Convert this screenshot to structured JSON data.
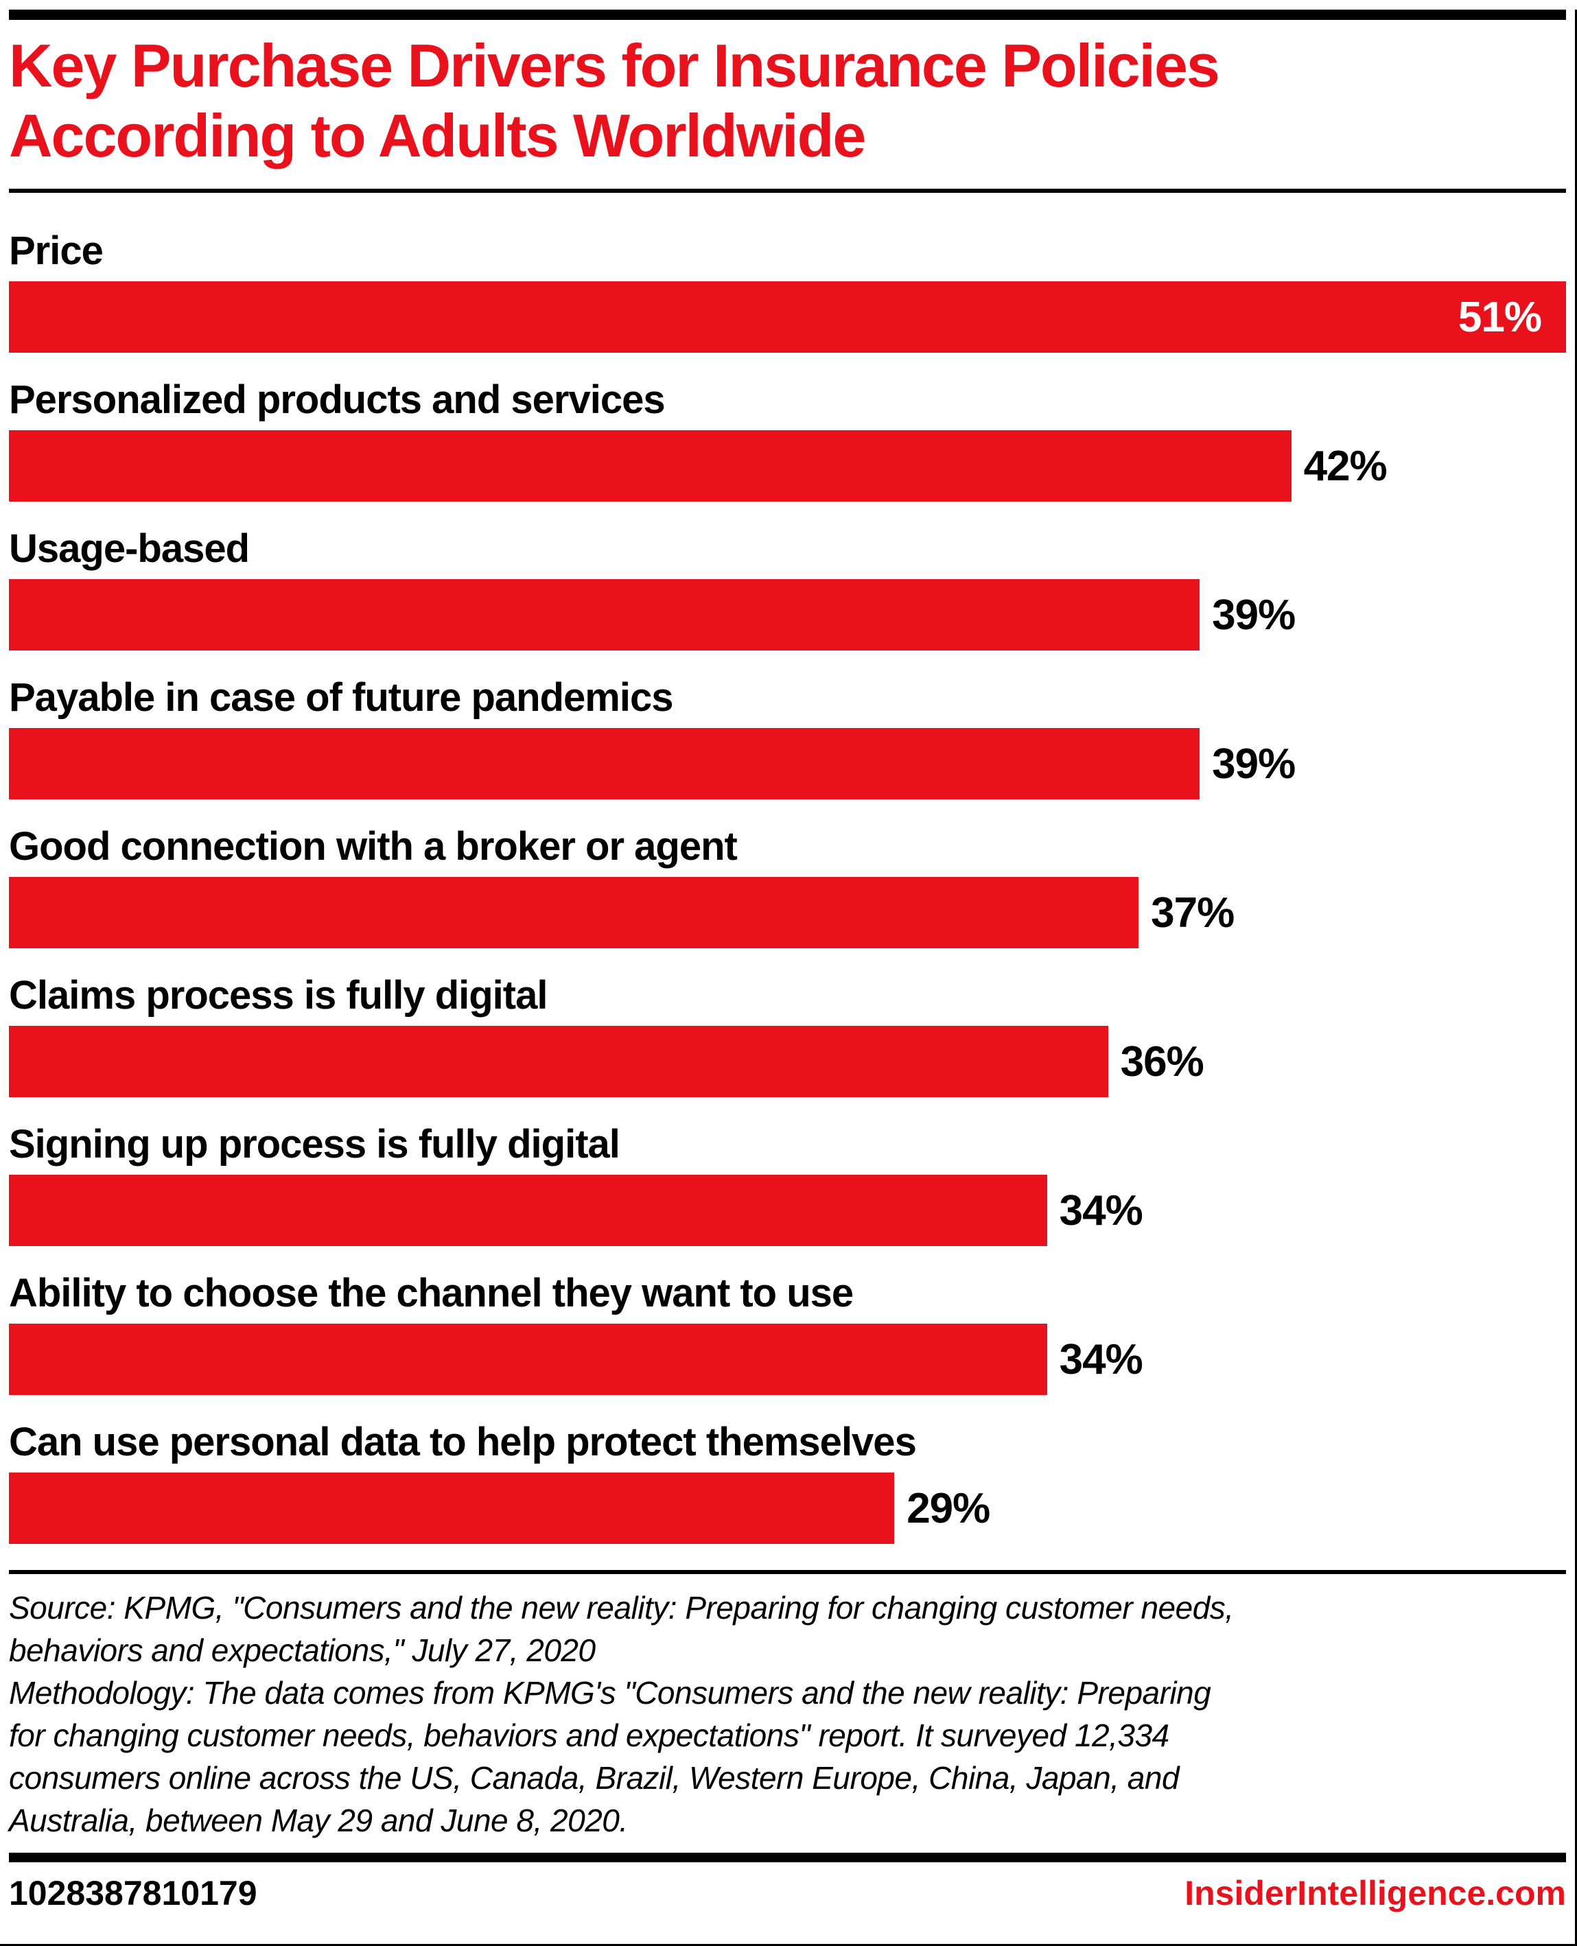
{
  "header": {
    "title_lines": [
      "Key Purchase Drivers for Insurance Policies",
      "According to Adults Worldwide"
    ]
  },
  "chart_data": {
    "type": "bar",
    "orientation": "horizontal",
    "title": "Key Purchase Drivers for Insurance Policies According to Adults Worldwide",
    "categories": [
      "Price",
      "Personalized products and services",
      "Usage-based",
      "Payable in case of future pandemics",
      "Good connection with a broker or agent",
      "Claims process is fully digital",
      "Signing up process is fully digital",
      "Ability to choose the channel they want to use",
      "Can use personal data to help protect themselves"
    ],
    "values": [
      51,
      42,
      39,
      39,
      37,
      36,
      34,
      34,
      29
    ],
    "value_suffix": "%",
    "xlim": [
      0,
      51
    ],
    "grid": false,
    "legend": "none",
    "bar_color": "#e8111c",
    "value_label_placement": [
      "inside",
      "outside",
      "outside",
      "outside",
      "outside",
      "outside",
      "outside",
      "outside",
      "outside"
    ],
    "value_label_color_inside": "#ffffff",
    "value_label_color_outside": "#000000"
  },
  "source": {
    "lines": [
      "Source: KPMG, \"Consumers and the new reality: Preparing for changing customer needs,",
      "behaviors and expectations,\" July 27, 2020",
      "Methodology: The data comes from KPMG's \"Consumers and the new reality: Preparing",
      "for changing customer needs, behaviors and expectations\" report. It surveyed 12,334",
      "consumers online across the US, Canada, Brazil, Western Europe, China, Japan, and",
      "Australia, between May 29 and June 8, 2020."
    ]
  },
  "footer": {
    "chart_id": "1028387810179",
    "site": "InsiderIntelligence.com"
  },
  "colors": {
    "accent_red": "#e8111c",
    "background": "#ffffff",
    "rule_black": "#000000"
  }
}
